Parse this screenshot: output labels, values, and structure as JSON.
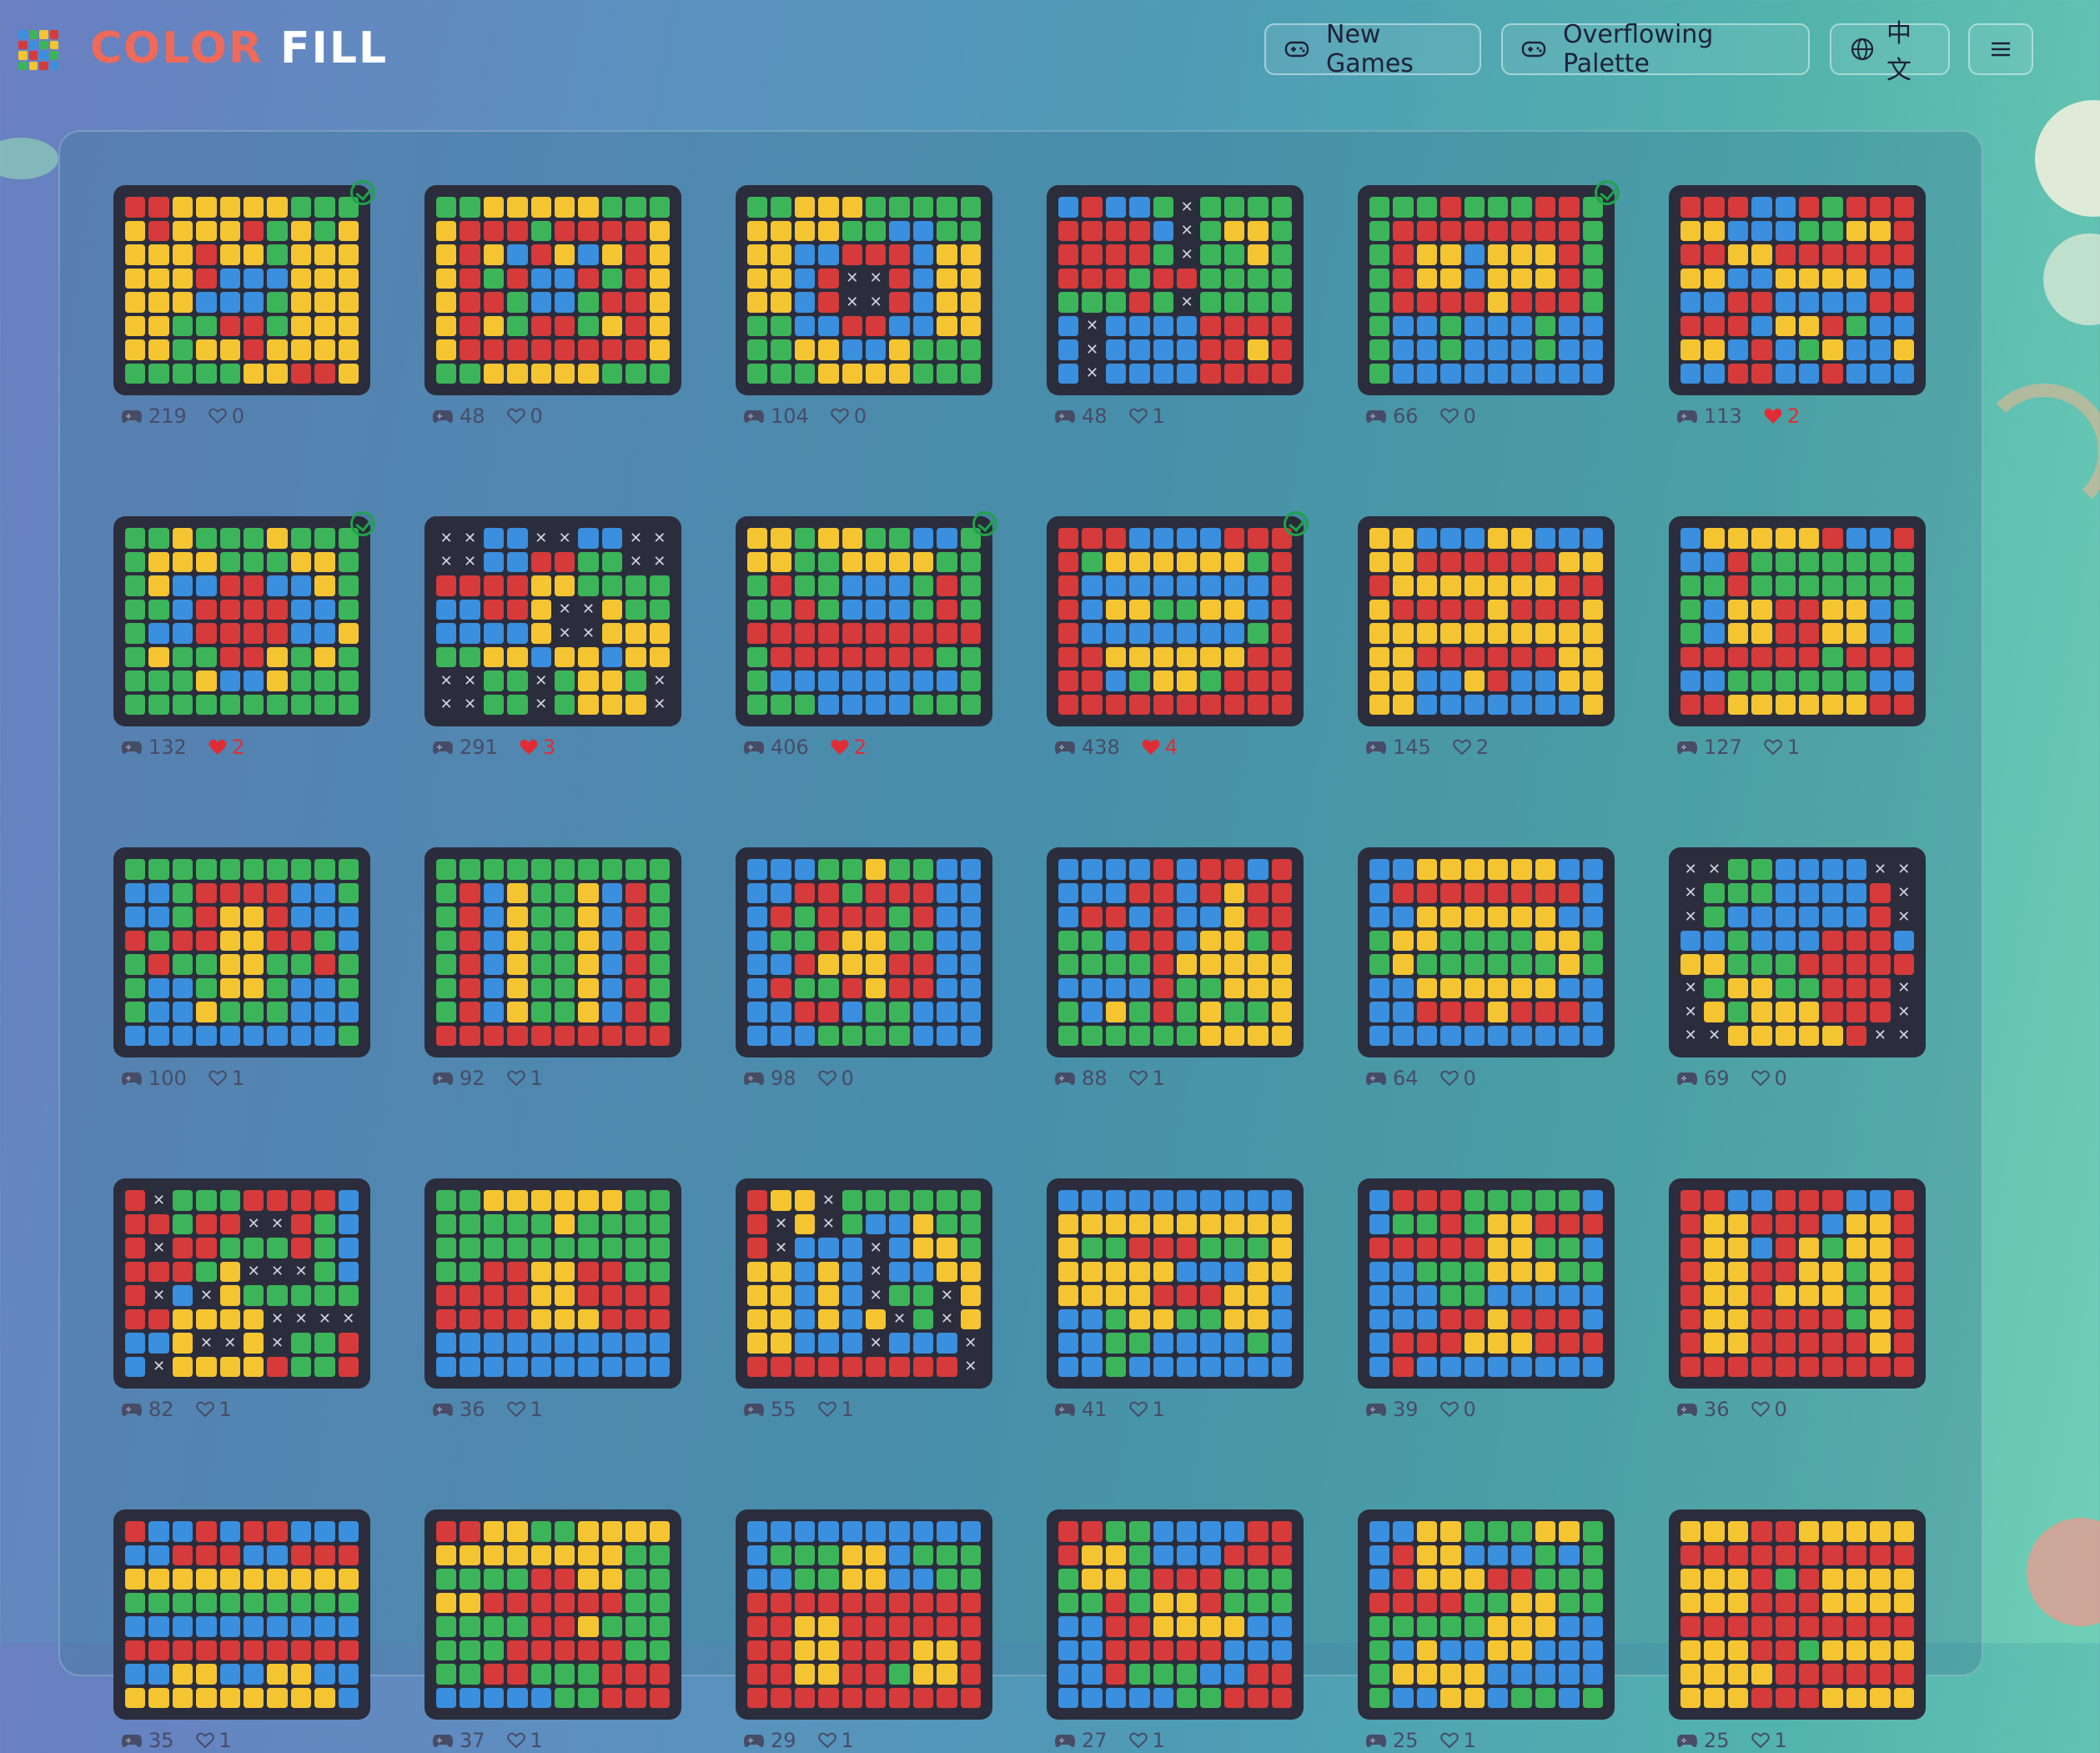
{
  "app": {
    "logo_word1": "COLOR",
    "logo_word2": "FILL"
  },
  "nav": {
    "new_games": "New Games",
    "overflowing_palette": "Overflowing Palette",
    "language": "中文"
  },
  "colors": {
    "R": "#d63a3a",
    "Y": "#f4c531",
    "G": "#3cb55a",
    "B": "#3a8fde",
    "board": "#2b2d3c",
    "liked": "#e02c34",
    "done": "#1fa34a"
  },
  "levels": [
    {
      "plays": "219",
      "likes": "0",
      "liked": false,
      "completed": true,
      "grid": [
        "RRYYYYYGGG",
        "YRYYYRGYGY",
        "YYYRYYGYYY",
        "YYYRBBBYYY",
        "YYYBBBGYYY",
        "YYGGRRGYYY",
        "YYGYYRYYYY",
        "GGGGGYYRRY"
      ]
    },
    {
      "plays": "48",
      "likes": "0",
      "liked": false,
      "completed": false,
      "grid": [
        "GGYYYYYGGG",
        "YRRRGRRRRY",
        "YRYBRYBYRY",
        "YRGRBBRGRY",
        "YRRGBBGRRY",
        "YRYGRRGYRY",
        "YRRRRRRRRY",
        "GGYYYYYGGG"
      ]
    },
    {
      "plays": "104",
      "likes": "0",
      "liked": false,
      "completed": false,
      "grid": [
        "GGYYYGGGGG",
        "YYYYGGBBGG",
        "YYBBRRRBYY",
        "YYBRXXRBYY",
        "YYBRXXRBYY",
        "GGBBRRBBYY",
        "GGYYBBYGGG",
        "GGGYYYYGGG"
      ]
    },
    {
      "plays": "48",
      "likes": "1",
      "liked": false,
      "completed": false,
      "grid": [
        "BRBBGXGGGG",
        "RRRRBXGYYG",
        "RRRRGXGGYG",
        "RRRGRRGGGG",
        "GGGRGXGGGG",
        "BXBBBBRRRR",
        "BXBBBBRRYR",
        "BXBBBBRRRR"
      ]
    },
    {
      "plays": "66",
      "likes": "0",
      "liked": false,
      "completed": true,
      "grid": [
        "GGGRGGGRRG",
        "GRRRRRRRRG",
        "GRYYBYYYRG",
        "GRYYBYYYRG",
        "GRRRRYRRRG",
        "GBBGBBBGBB",
        "GBBGBBBGBB",
        "GBBBBBBBBB"
      ]
    },
    {
      "plays": "113",
      "likes": "2",
      "liked": true,
      "completed": false,
      "grid": [
        "RRRBBRGRRR",
        "YYBBBGGYYR",
        "RRYYRRRRRR",
        "YYBBYYYYBB",
        "BBRRBBBBRR",
        "RRRBYYRGBB",
        "YYBRBGYBBY",
        "BBRRBBRBBB"
      ]
    },
    {
      "plays": "132",
      "likes": "2",
      "liked": true,
      "completed": true,
      "grid": [
        "GGYGGGYGGG",
        "GYYYGGGYYG",
        "GYBBRRBBYG",
        "GGBRRRRBBG",
        "GBBRRRRBBY",
        "GYGGRRYGYG",
        "GGGYBBYGGG",
        "GGGGGGGGGG"
      ]
    },
    {
      "plays": "291",
      "likes": "3",
      "liked": true,
      "completed": false,
      "grid": [
        "XXBBXXBBXX",
        "XXBBRRGGXX",
        "RRRRYYGGGG",
        "BBRRYXXYGG",
        "BBBBYXXYYY",
        "GGYYBYYBYY",
        "XXGGXGYYGX",
        "XXGGXGYYYX"
      ]
    },
    {
      "plays": "406",
      "likes": "2",
      "liked": true,
      "completed": true,
      "grid": [
        "YYGYYGGBBG",
        "YYGGYYYYGG",
        "GRGGBBBGRG",
        "GGRGBBBGRG",
        "RRRRRRRRRR",
        "GRRRRRRRGG",
        "GBBBBBBBBG",
        "GGGBBBBGGG"
      ]
    },
    {
      "plays": "438",
      "likes": "4",
      "liked": true,
      "completed": true,
      "grid": [
        "RRRBBBBRRR",
        "RGYYYYYYGR",
        "RBBBBBBBBR",
        "RBYYGGYYBR",
        "RBBBBBBBGR",
        "RRYYYYYYRR",
        "RRBGYYGRRR",
        "RRRRRRRRRR"
      ]
    },
    {
      "plays": "145",
      "likes": "2",
      "liked": false,
      "completed": false,
      "grid": [
        "YYBBBYYBBB",
        "YYRRRRRRYY",
        "RYYYYYYYRR",
        "YRRRRYRRRY",
        "YYYYYYYYYY",
        "YYRRRRRRYY",
        "YYBBYRBBYY",
        "YYBBBBBBBY"
      ]
    },
    {
      "plays": "127",
      "likes": "1",
      "liked": false,
      "completed": false,
      "grid": [
        "BYYYYYRBBR",
        "BBRGGGGGGG",
        "GGRGGGGGGG",
        "GBYYRRYYBG",
        "GBYYRRYYBG",
        "RRRRRRGRRR",
        "BBGGGGGGBB",
        "RRYYYYYYRR"
      ]
    },
    {
      "plays": "100",
      "likes": "1",
      "liked": false,
      "completed": false,
      "grid": [
        "GGGGGGGGGG",
        "BBGRRRRBBG",
        "BBGRYYRBBB",
        "RGRRYYRRGB",
        "GRGGYYGGRG",
        "GBBGYYGBBG",
        "GBBYGGGBBB",
        "BBBBBBBBBG"
      ]
    },
    {
      "plays": "92",
      "likes": "1",
      "liked": false,
      "completed": false,
      "grid": [
        "GGGGGGGGGG",
        "GRBYGGYBRG",
        "GRBYGGYBRG",
        "GRBYGGYBRG",
        "GRBYGGYBRG",
        "GRBYGGYBRG",
        "GRBYGGYBRG",
        "RRRRRRRRRR"
      ]
    },
    {
      "plays": "98",
      "likes": "0",
      "liked": false,
      "completed": false,
      "grid": [
        "BBBGGYGGBB",
        "BBRRGRRRBB",
        "BRGRRRGRBB",
        "BGGRYYGGBB",
        "BBRYYYRRBB",
        "BRGGRYRRBB",
        "BBRRBGGBBB",
        "BBBGGGGBBB"
      ]
    },
    {
      "plays": "88",
      "likes": "1",
      "liked": false,
      "completed": false,
      "grid": [
        "BBBBRBRRBR",
        "BBBRRBRYRR",
        "BRRBRBBYRR",
        "GGBRRBYYGR",
        "GGGGRYYYYY",
        "BBBBRGGYYY",
        "GBYGRGYGGY",
        "GGGGGGYYYY"
      ]
    },
    {
      "plays": "64",
      "likes": "0",
      "liked": false,
      "completed": false,
      "grid": [
        "BBYYYYYYBB",
        "BRRRRRRRRB",
        "BBYYYYYYBB",
        "GYYGGGGYYG",
        "GYGGGGGGYG",
        "BBYYYYYYBB",
        "BBRRRYRRRB",
        "BBBBBBBBBB"
      ]
    },
    {
      "plays": "69",
      "likes": "0",
      "liked": false,
      "completed": false,
      "grid": [
        "XXGGBBBBXX",
        "XGGGBBBBRX",
        "XGBBBBBBRX",
        "BBGBBBRRRB",
        "YYGGGRRRRR",
        "XGYYGGRRRX",
        "XYGYYYRRRX",
        "XXYYYYYRXX"
      ]
    },
    {
      "plays": "82",
      "likes": "1",
      "liked": false,
      "completed": false,
      "grid": [
        "RXGGGRRRRB",
        "RRGRRXXRGB",
        "RXRRGGGRGB",
        "RRRGYXXXGB",
        "RXBXYGGGGG",
        "RRYYYYXXXX",
        "BBYXXYXGGR",
        "BXYYYYRGGR"
      ]
    },
    {
      "plays": "36",
      "likes": "1",
      "liked": false,
      "completed": false,
      "grid": [
        "GGYYYYYYGG",
        "GGGGGYGGGG",
        "GGGGGGGGGG",
        "GGRRYYRRGG",
        "RRRRYYRRRR",
        "RRRRYYYRRR",
        "BBBBBBBBBB",
        "BBBBBBBBBB"
      ]
    },
    {
      "plays": "55",
      "likes": "1",
      "liked": false,
      "completed": false,
      "grid": [
        "RYYXGGGGGG",
        "RXYXGBBYGG",
        "RXBBBXBYYG",
        "YYBYBXBBYY",
        "YYBYBXGGXY",
        "YYBYBYXGXY",
        "YYBBBXBBBX",
        "RRRRRRRRRX"
      ]
    },
    {
      "plays": "41",
      "likes": "1",
      "liked": false,
      "completed": false,
      "grid": [
        "BBBBBBBBBB",
        "YYYYYYYYYY",
        "YGGRRRGGGY",
        "YYYYYBBBYY",
        "YYYYRRRYYB",
        "BBGYYGGYYB",
        "BBGGBBBBGB",
        "BBGBBBBBBB"
      ]
    },
    {
      "plays": "39",
      "likes": "0",
      "liked": false,
      "completed": false,
      "grid": [
        "BRRRGGGGGB",
        "BGGRGYYRRR",
        "RRRRRYYGGB",
        "BBGGGYYYGG",
        "BBBGGBBBBB",
        "BBBRRYRRRB",
        "BRRRYYYRRR",
        "BRBBBBBBBB"
      ]
    },
    {
      "plays": "36",
      "likes": "0",
      "liked": false,
      "completed": false,
      "grid": [
        "RRBBRRRBBR",
        "RYYRRRBYYR",
        "RYYBRYGYYR",
        "RYYRRYYGYR",
        "RYYRYYYGYR",
        "RYYRRRRGYR",
        "RYYRRRRRYR",
        "RRRRRRRRRR"
      ]
    },
    {
      "plays": "35",
      "likes": "1",
      "liked": false,
      "completed": false,
      "grid": [
        "RBBRBRRBBB",
        "BBRRRBBRRR",
        "YYYYYYYYYY",
        "GGGGGGGGGG",
        "BBBBBBBBBB",
        "RRRRRRRRRR",
        "BBYYBBYYBB",
        "YYYYYYYYYB"
      ]
    },
    {
      "plays": "37",
      "likes": "1",
      "liked": false,
      "completed": false,
      "grid": [
        "RRYYGGYYYY",
        "YYYYYYYYGG",
        "GGGGRRYYGG",
        "YYRRRRRRGG",
        "GGGGRRYGGG",
        "GGGRRRRRGG",
        "GGRRGGGRRR",
        "BBBBBGGRRR"
      ]
    },
    {
      "plays": "29",
      "likes": "1",
      "liked": false,
      "completed": false,
      "grid": [
        "BBBBBBBBBB",
        "BGGGYYBGGG",
        "BBGGYYBBGG",
        "RRRRRRRRRR",
        "RRYYRRRRRR",
        "RRYYRRRYYR",
        "RRYYRRGYYR",
        "RRRRRRRRRR"
      ]
    },
    {
      "plays": "27",
      "likes": "1",
      "liked": false,
      "completed": false,
      "grid": [
        "RRGGBBBBRR",
        "RYYGBBBRRR",
        "GYYGRRRGGG",
        "GGRGYYRGGG",
        "BBRRYYYYBB",
        "BBRRRRRBBB",
        "BBRGGGBBRR",
        "BBBBBGGRRR"
      ]
    },
    {
      "plays": "25",
      "likes": "1",
      "liked": false,
      "completed": false,
      "grid": [
        "BBYYGGGYYG",
        "BRYYBBBGBG",
        "BRYYYRRGGG",
        "RRRRGGYYGG",
        "GGGGGYYYBB",
        "GBYBBYYBBB",
        "GYYYYBBBBB",
        "GBBYYBGGBG"
      ]
    },
    {
      "plays": "25",
      "likes": "1",
      "liked": false,
      "completed": false,
      "grid": [
        "YYYRRYYYYY",
        "RRRRRRRRRR",
        "YYYRGRYYYY",
        "YYYRRRYYYY",
        "RRRRRRRRRR",
        "YYYRRGYYYY",
        "YYYYRRRRRR",
        "YYYRRRYYYY"
      ]
    }
  ]
}
